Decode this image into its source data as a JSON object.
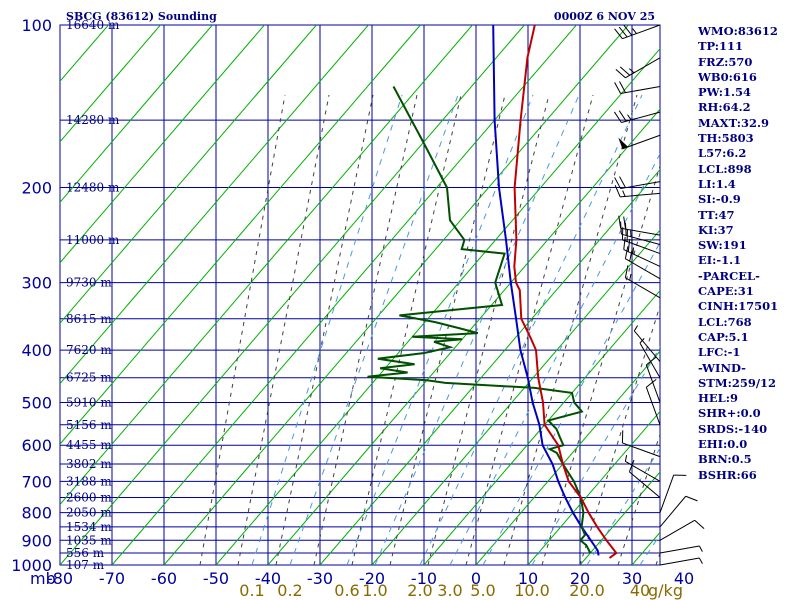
{
  "header": {
    "title": "SBCG (83612) Sounding",
    "datetime": "0000Z  6 NOV 25"
  },
  "axis": {
    "pressure_unit": "mb",
    "mixing_unit": "g/kg"
  },
  "chart_data": {
    "type": "skew-t",
    "pressure_ticks": [
      {
        "p": 100,
        "label": "100"
      },
      {
        "p": 200,
        "label": "200"
      },
      {
        "p": 300,
        "label": "300"
      },
      {
        "p": 400,
        "label": "400"
      },
      {
        "p": 500,
        "label": "500"
      },
      {
        "p": 600,
        "label": "600"
      },
      {
        "p": 700,
        "label": "700"
      },
      {
        "p": 800,
        "label": "800"
      },
      {
        "p": 900,
        "label": "900"
      },
      {
        "p": 1000,
        "label": "1000"
      }
    ],
    "height_labels": [
      {
        "p": 100,
        "label": "16640 m"
      },
      {
        "p": 150,
        "label": "14280 m"
      },
      {
        "p": 200,
        "label": "12480 m"
      },
      {
        "p": 250,
        "label": "11000 m"
      },
      {
        "p": 300,
        "label": "9730 m"
      },
      {
        "p": 350,
        "label": "8615 m"
      },
      {
        "p": 400,
        "label": "7620 m"
      },
      {
        "p": 450,
        "label": "6725 m"
      },
      {
        "p": 500,
        "label": "5910 m"
      },
      {
        "p": 550,
        "label": "5156 m"
      },
      {
        "p": 600,
        "label": "4455 m"
      },
      {
        "p": 650,
        "label": "3802 m"
      },
      {
        "p": 700,
        "label": "3188 m"
      },
      {
        "p": 750,
        "label": "2600 m"
      },
      {
        "p": 800,
        "label": "2050 m"
      },
      {
        "p": 850,
        "label": "1534 m"
      },
      {
        "p": 900,
        "label": "1035 m"
      },
      {
        "p": 950,
        "label": "556 m"
      },
      {
        "p": 1000,
        "label": "107 m"
      }
    ],
    "temperature_ticks": [
      -80,
      -70,
      -60,
      -50,
      -40,
      -30,
      -20,
      -10,
      0,
      10,
      20,
      30,
      40
    ],
    "mixing_ratio_labels": [
      "0.1",
      "0.2",
      "0.6",
      "1.0",
      "2.0",
      "3.0",
      "5.0",
      "10.0",
      "20.0",
      "40"
    ],
    "temperature_profile": [
      [
        100,
        -78
      ],
      [
        115,
        -74
      ],
      [
        150,
        -65
      ],
      [
        200,
        -55
      ],
      [
        250,
        -46
      ],
      [
        280,
        -42
      ],
      [
        300,
        -39
      ],
      [
        310,
        -37
      ],
      [
        350,
        -32
      ],
      [
        380,
        -27
      ],
      [
        400,
        -24
      ],
      [
        450,
        -19
      ],
      [
        500,
        -14
      ],
      [
        550,
        -10
      ],
      [
        600,
        -4
      ],
      [
        650,
        0
      ],
      [
        700,
        4
      ],
      [
        750,
        9
      ],
      [
        800,
        13
      ],
      [
        850,
        17
      ],
      [
        900,
        21
      ],
      [
        950,
        25
      ],
      [
        970,
        24.5
      ]
    ],
    "dewpoint_profile": [
      [
        130,
        -95
      ],
      [
        165,
        -80
      ],
      [
        200,
        -68
      ],
      [
        230,
        -62
      ],
      [
        250,
        -56
      ],
      [
        260,
        -55
      ],
      [
        265,
        -46
      ],
      [
        300,
        -43
      ],
      [
        330,
        -38
      ],
      [
        345,
        -56
      ],
      [
        355,
        -48
      ],
      [
        365,
        -42
      ],
      [
        372,
        -38
      ],
      [
        378,
        -50
      ],
      [
        382,
        -40
      ],
      [
        386,
        -45
      ],
      [
        395,
        -41
      ],
      [
        405,
        -45
      ],
      [
        415,
        -53
      ],
      [
        425,
        -45
      ],
      [
        432,
        -51
      ],
      [
        440,
        -45
      ],
      [
        448,
        -52
      ],
      [
        455,
        -40
      ],
      [
        460,
        -36
      ],
      [
        470,
        -18
      ],
      [
        480,
        -10
      ],
      [
        500,
        -8
      ],
      [
        520,
        -5
      ],
      [
        540,
        -10
      ],
      [
        560,
        -7
      ],
      [
        580,
        -5
      ],
      [
        600,
        -3
      ],
      [
        610,
        -5
      ],
      [
        620,
        -3
      ],
      [
        650,
        0
      ],
      [
        700,
        5
      ],
      [
        750,
        9
      ],
      [
        800,
        12
      ],
      [
        850,
        14
      ],
      [
        880,
        16
      ],
      [
        900,
        16
      ],
      [
        920,
        18
      ],
      [
        950,
        20
      ]
    ],
    "parcel_profile": [
      [
        100,
        -86
      ],
      [
        150,
        -70
      ],
      [
        200,
        -58
      ],
      [
        250,
        -48
      ],
      [
        300,
        -40
      ],
      [
        350,
        -33
      ],
      [
        400,
        -27
      ],
      [
        450,
        -21
      ],
      [
        500,
        -16
      ],
      [
        550,
        -11
      ],
      [
        600,
        -7
      ],
      [
        650,
        -2
      ],
      [
        700,
        2
      ],
      [
        750,
        6
      ],
      [
        800,
        10
      ],
      [
        850,
        14
      ],
      [
        900,
        18
      ],
      [
        940,
        21
      ],
      [
        960,
        22
      ]
    ],
    "wind_barbs": [
      {
        "p": 100,
        "dir": 250,
        "spd": 35
      },
      {
        "p": 115,
        "dir": 240,
        "spd": 25
      },
      {
        "p": 130,
        "dir": 260,
        "spd": 20
      },
      {
        "p": 145,
        "dir": 255,
        "spd": 25
      },
      {
        "p": 160,
        "dir": 250,
        "spd": 50
      },
      {
        "p": 195,
        "dir": 260,
        "spd": 20
      },
      {
        "p": 205,
        "dir": 265,
        "spd": 15
      },
      {
        "p": 245,
        "dir": 280,
        "spd": 20
      },
      {
        "p": 255,
        "dir": 285,
        "spd": 25
      },
      {
        "p": 265,
        "dir": 290,
        "spd": 25
      },
      {
        "p": 280,
        "dir": 295,
        "spd": 25
      },
      {
        "p": 295,
        "dir": 300,
        "spd": 20
      },
      {
        "p": 320,
        "dir": 300,
        "spd": 15
      },
      {
        "p": 420,
        "dir": 320,
        "spd": 5
      },
      {
        "p": 450,
        "dir": 330,
        "spd": 5
      },
      {
        "p": 500,
        "dir": 340,
        "spd": 10
      },
      {
        "p": 550,
        "dir": 340,
        "spd": 10
      },
      {
        "p": 630,
        "dir": 290,
        "spd": 10
      },
      {
        "p": 700,
        "dir": 300,
        "spd": 5
      },
      {
        "p": 750,
        "dir": 310,
        "spd": 10
      },
      {
        "p": 800,
        "dir": 20,
        "spd": 10
      },
      {
        "p": 850,
        "dir": 40,
        "spd": 10
      },
      {
        "p": 900,
        "dir": 60,
        "spd": 10
      },
      {
        "p": 950,
        "dir": 80,
        "spd": 5
      },
      {
        "p": 1000,
        "dir": 80,
        "spd": 5
      }
    ]
  },
  "stats": [
    {
      "label": "WMO:83612"
    },
    {
      "label": "TP:111"
    },
    {
      "label": "FRZ:570"
    },
    {
      "label": "WB0:616"
    },
    {
      "label": "PW:1.54"
    },
    {
      "label": "RH:64.2"
    },
    {
      "label": "MAXT:32.9"
    },
    {
      "label": "TH:5803"
    },
    {
      "label": "L57:6.2"
    },
    {
      "label": "LCL:898"
    },
    {
      "label": "LI:1.4"
    },
    {
      "label": "SI:-0.9"
    },
    {
      "label": "TT:47"
    },
    {
      "label": "KI:37"
    },
    {
      "label": "SW:191"
    },
    {
      "label": "EI:-1.1"
    },
    {
      "label": "-PARCEL-"
    },
    {
      "label": "CAPE:31"
    },
    {
      "label": "CINH:17501"
    },
    {
      "label": "LCL:768"
    },
    {
      "label": "CAP:5.1"
    },
    {
      "label": "LFC:-1"
    },
    {
      "label": "-WIND-"
    },
    {
      "label": "STM:259/12"
    },
    {
      "label": "HEL:9"
    },
    {
      "label": "SHR+:0.0"
    },
    {
      "label": "SRDS:-140"
    },
    {
      "label": "EHI:0.0"
    },
    {
      "label": "BRN:0.5"
    },
    {
      "label": "BSHR:66"
    }
  ],
  "colors": {
    "grid": "#0000a0",
    "dry_adiabat": "#00b000",
    "moist_adiabat": "#404040",
    "mixing_ratio": "#4a9ad8",
    "temperature": "#c00000",
    "dewpoint": "#005000",
    "parcel": "#0000c0",
    "wind": "#000000"
  }
}
